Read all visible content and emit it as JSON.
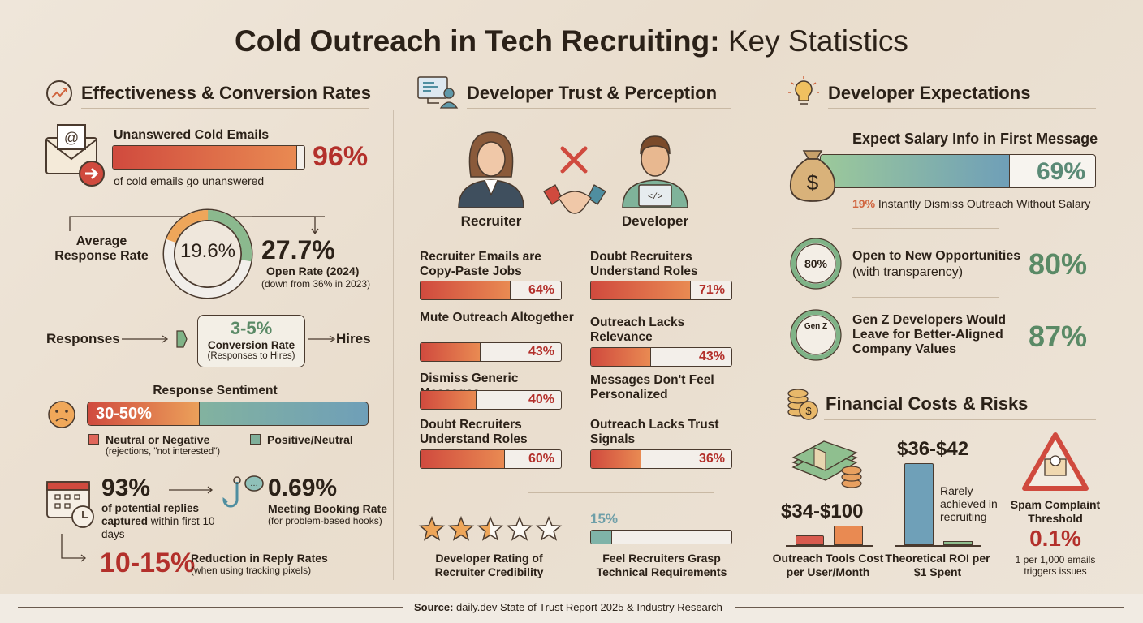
{
  "title": {
    "bold": "Cold Outreach in Tech Recruiting:",
    "light": "Key Statistics"
  },
  "colors": {
    "red": "#b3302b",
    "green": "#5a8a66",
    "teal": "#6f9fa8",
    "orange": "#e98a52"
  },
  "effectiveness": {
    "heading": "Effectiveness & Conversion Rates",
    "unanswered": {
      "label": "Unanswered Cold Emails",
      "value": "96%",
      "pct": 96,
      "caption": "of cold emails go unanswered"
    },
    "donut": {
      "label": "Average Response Rate",
      "value": "19.6%",
      "response_pct": 19.6,
      "open_pct": 27.7,
      "open_value": "27.7%",
      "open_label": "Open Rate (2024)",
      "open_note": "(down from 36% in 2023)"
    },
    "funnel": {
      "from": "Responses",
      "value": "3-5%",
      "label": "Conversion Rate",
      "note": "(Responses to Hires)",
      "to": "Hires"
    },
    "sentiment": {
      "title": "Response Sentiment",
      "value": "30-50%",
      "neg_pct": 40,
      "neg_label": "Neutral or Negative",
      "neg_note": "(rejections, \"not interested\")",
      "pos_label": "Positive/Neutral"
    },
    "timing": {
      "value": "93%",
      "bold": "of potential replies captured",
      "rest": " within first 10 days"
    },
    "meeting": {
      "value": "0.69%",
      "label": "Meeting Booking Rate",
      "note": "(for problem-based hooks)"
    },
    "tracking": {
      "value": "10-15%",
      "label": "Reduction in Reply Rates",
      "note": "(when using tracking pixels)"
    }
  },
  "trust": {
    "heading": "Developer Trust & Perception",
    "recruiter": "Recruiter",
    "developer": "Developer",
    "left": [
      {
        "label": "Recruiter Emails are Copy-Paste Jobs",
        "value": "64%",
        "pct": 64
      },
      {
        "label": "Mute Outreach Altogether",
        "value": "43%",
        "pct": 43
      },
      {
        "label": "Dismiss Generic Messages",
        "value": "40%",
        "pct": 40
      },
      {
        "label": "Doubt Recruiters Understand Roles",
        "value": "60%",
        "pct": 60
      }
    ],
    "right": [
      {
        "label": "Doubt Recruiters Understand Roles",
        "value": "71%",
        "pct": 71
      },
      {
        "label": "Outreach Lacks Relevance",
        "value": "43%",
        "pct": 43
      },
      {
        "label": "Messages Don't Feel Personalized"
      },
      {
        "label": "Outreach Lacks Trust Signals",
        "value": "36%",
        "pct": 36
      }
    ],
    "rating": {
      "label": "Developer Rating of Recruiter Credibility",
      "stars": 2.5,
      "max": 5
    },
    "grasp": {
      "value": "15%",
      "pct": 15,
      "label": "Feel Recruiters Grasp Technical Requirements"
    }
  },
  "expectations": {
    "heading": "Developer Expectations",
    "salary": {
      "label": "Expect Salary Info in First Message",
      "value": "69%",
      "pct": 69,
      "dismiss_value": "19%",
      "dismiss_text": "Instantly Dismiss Outreach Without Salary"
    },
    "items": [
      {
        "badge": "80%",
        "title": "Open to New Opportunities",
        "sub": "(with transparency)",
        "value": "80%"
      },
      {
        "badge": "Gen Z",
        "title": "Gen Z Developers Would Leave for Better-Aligned Company Values",
        "value": "87%"
      }
    ]
  },
  "financial": {
    "heading": "Financial Costs & Risks",
    "tools": {
      "value": "$34-$100",
      "low": 34,
      "high": 100,
      "label": "Outreach Tools Cost per User/Month"
    },
    "roi": {
      "value": "$36-$42",
      "note": "Rarely achieved in recruiting",
      "label": "Theoretical ROI per $1 Spent"
    },
    "spam": {
      "title": "Spam Complaint Threshold",
      "value": "0.1%",
      "note": "1 per 1,000 emails triggers issues"
    }
  },
  "footer": {
    "source_label": "Source:",
    "source_text": " daily.dev State of Trust Report 2025 & Industry Research"
  }
}
